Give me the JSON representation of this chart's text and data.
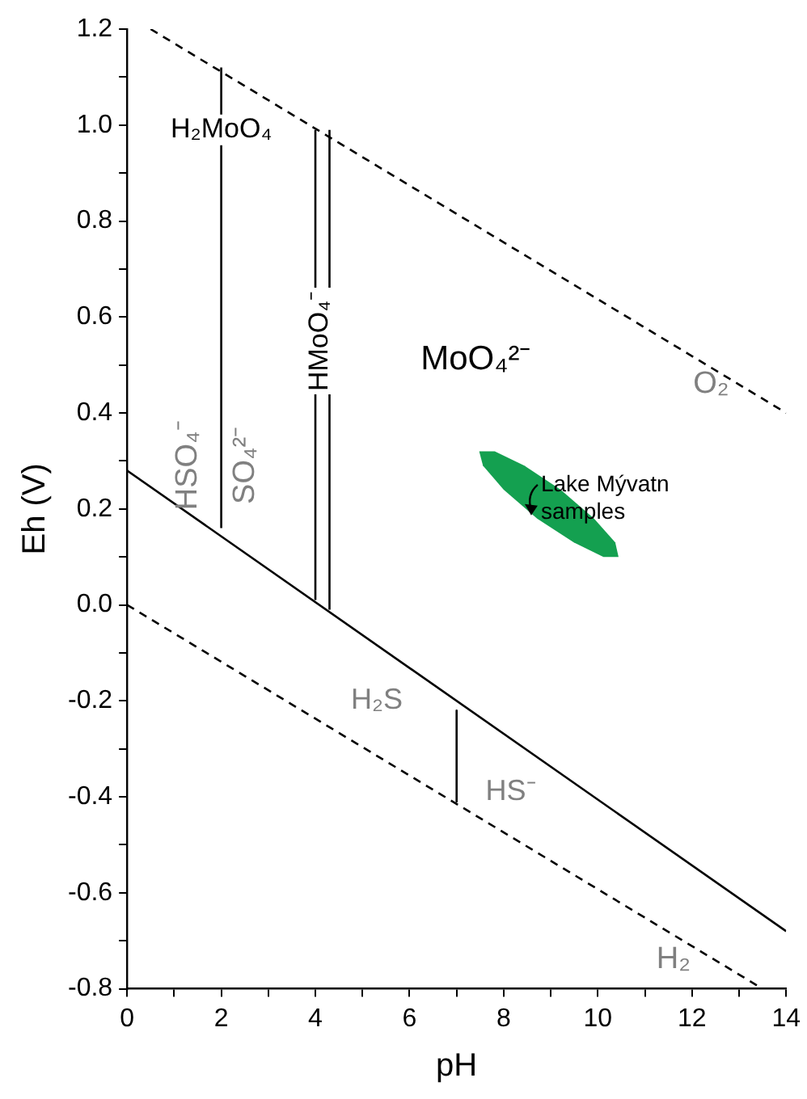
{
  "chart_data": {
    "type": "line",
    "xlabel": "pH",
    "ylabel": "Eh (V)",
    "xlim": [
      0,
      14
    ],
    "ylim": [
      -0.8,
      1.2
    ],
    "xticks": [
      0,
      {
        "value": 1,
        "label": null
      },
      2,
      {
        "value": 3,
        "label": null
      },
      4,
      {
        "value": 5,
        "label": null
      },
      6,
      {
        "value": 7,
        "label": null
      },
      8,
      {
        "value": 9,
        "label": null
      },
      10,
      {
        "value": 11,
        "label": null
      },
      12,
      {
        "value": 13,
        "label": null
      },
      14
    ],
    "yticks": [
      {
        "value": -0.8,
        "label": "-0.8"
      },
      {
        "value": -0.7,
        "label": null
      },
      {
        "value": -0.6,
        "label": "-0.6"
      },
      {
        "value": -0.5,
        "label": null
      },
      {
        "value": -0.4,
        "label": "-0.4"
      },
      {
        "value": -0.3,
        "label": null
      },
      {
        "value": -0.2,
        "label": "-0.2"
      },
      {
        "value": -0.1,
        "label": null
      },
      {
        "value": 0,
        "label": "0.0"
      },
      {
        "value": 0.1,
        "label": null
      },
      {
        "value": 0.2,
        "label": "0.2"
      },
      {
        "value": 0.3,
        "label": null
      },
      {
        "value": 0.4,
        "label": "0.4"
      },
      {
        "value": 0.5,
        "label": null
      },
      {
        "value": 0.6,
        "label": "0.6"
      },
      {
        "value": 0.7,
        "label": null
      },
      {
        "value": 0.8,
        "label": "0.8"
      },
      {
        "value": 0.9,
        "label": null
      },
      {
        "value": 1,
        "label": "1.0"
      },
      {
        "value": 1.1,
        "label": null
      },
      {
        "value": 1.2,
        "label": "1.2"
      }
    ],
    "grid": false,
    "legend": false,
    "marker": "none",
    "series": [
      {
        "color": "#000000",
        "line_style": "dashed",
        "x": [
          0.5,
          14
        ],
        "values": [
          1.2,
          0.4
        ]
      },
      {
        "color": "#000000",
        "line_style": "dashed",
        "x": [
          0,
          13.5
        ],
        "values": [
          0,
          -0.8
        ]
      },
      {
        "color": "#000000",
        "line_style": "solid",
        "x": [
          0,
          14
        ],
        "values": [
          0.28,
          -0.68
        ]
      },
      {
        "color": "#000000",
        "line_style": "solid",
        "x": [
          2,
          2
        ],
        "values": [
          0.16,
          1.12
        ]
      },
      {
        "color": "#000000",
        "line_style": "solid",
        "x": [
          4,
          4
        ],
        "values": [
          0.01,
          0.99
        ]
      },
      {
        "color": "#000000",
        "line_style": "solid",
        "x": [
          4.3,
          4.3
        ],
        "values": [
          -0.01,
          0.99
        ]
      },
      {
        "color": "#000000",
        "line_style": "solid",
        "x": [
          7,
          7
        ],
        "values": [
          -0.22,
          -0.41
        ]
      },
      {
        "type": "area",
        "name": "Lake Mývatn samples",
        "color": "#14a050",
        "x": [
          10.44,
          10.12,
          9.49,
          8.71,
          8,
          7.56,
          7.48,
          7.81,
          8.44,
          9.21,
          9.92,
          10.37
        ],
        "values": [
          0.1,
          0.1,
          0.13,
          0.18,
          0.24,
          0.29,
          0.32,
          0.32,
          0.29,
          0.24,
          0.18,
          0.13
        ]
      }
    ],
    "annotations": [
      "H₂MoO₄",
      "MoO₄²⁻",
      "O₂",
      "HSO₄⁻",
      "SO₄²⁻",
      "HMoO₄⁻",
      "H₂S",
      "HS⁻",
      "H₂"
    ]
  }
}
